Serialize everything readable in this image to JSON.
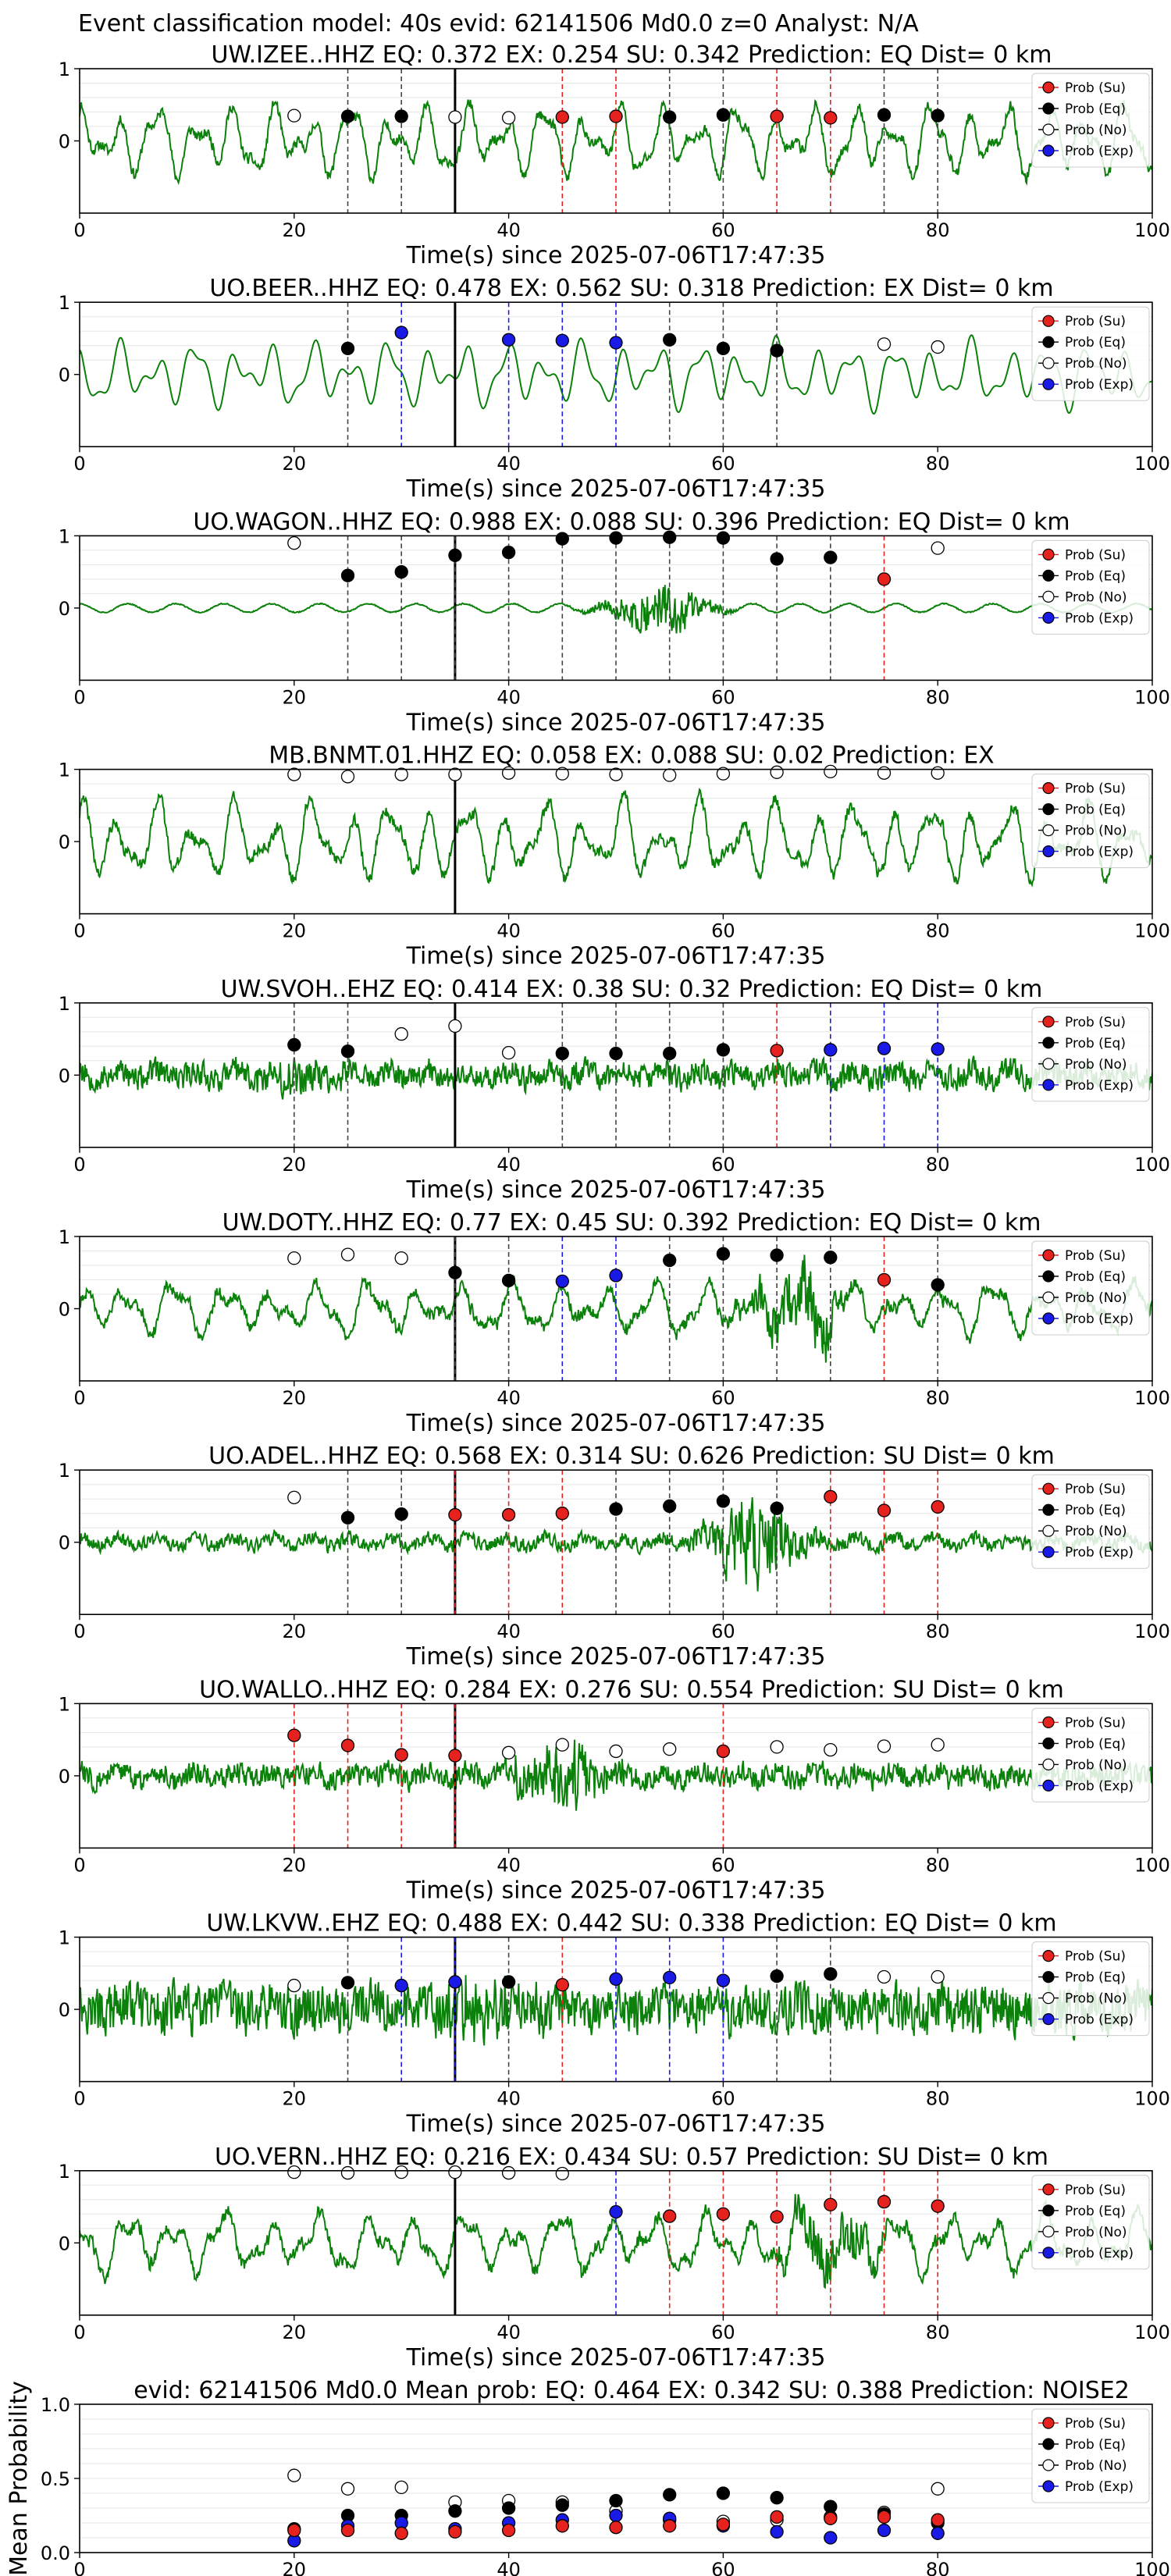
{
  "figure": {
    "suptitle": "Event classification model: 40s evid: 62141506 Md0.0 z=0 Analyst: N/A"
  },
  "legend_labels": [
    "Prob (Su)",
    "Prob (Eq)",
    "Prob (No)",
    "Prob (Exp)"
  ],
  "colors": {
    "su": "#e6221e",
    "eq": "#000000",
    "no": "#ffffff",
    "exp": "#1a1ae6",
    "trace": "#0b800b"
  },
  "chart_data": [
    {
      "type": "scatter",
      "title": "UW.IZEE..HHZ   EQ: 0.372  EX: 0.254  SU: 0.342   Prediction: EQ    Dist= 0 km",
      "xlabel": "Time(s) since 2025-07-06T17:47:35",
      "xlim": [
        0,
        100
      ],
      "ylim": [
        -1,
        1
      ],
      "xticks": [
        "0",
        "20",
        "40",
        "60",
        "80",
        "100"
      ],
      "yticks": [
        "0",
        "1"
      ],
      "waveform": {
        "seed": 11,
        "style": "low",
        "amp": 0.55,
        "burst": 0,
        "burst_center": 0
      },
      "markers": [
        {
          "x": 20,
          "y": 0.35,
          "cls": "no"
        },
        {
          "x": 25,
          "y": 0.34,
          "cls": "eq"
        },
        {
          "x": 30,
          "y": 0.34,
          "cls": "eq"
        },
        {
          "x": 35,
          "y": 0.33,
          "cls": "no"
        },
        {
          "x": 40,
          "y": 0.32,
          "cls": "no"
        },
        {
          "x": 45,
          "y": 0.33,
          "cls": "su"
        },
        {
          "x": 50,
          "y": 0.34,
          "cls": "su"
        },
        {
          "x": 55,
          "y": 0.33,
          "cls": "eq"
        },
        {
          "x": 60,
          "y": 0.36,
          "cls": "eq"
        },
        {
          "x": 65,
          "y": 0.34,
          "cls": "su"
        },
        {
          "x": 70,
          "y": 0.32,
          "cls": "su"
        },
        {
          "x": 75,
          "y": 0.36,
          "cls": "eq"
        },
        {
          "x": 80,
          "y": 0.35,
          "cls": "eq"
        }
      ]
    },
    {
      "type": "scatter",
      "title": "UO.BEER..HHZ   EQ: 0.478  EX: 0.562  SU: 0.318   Prediction: EX    Dist= 0 km",
      "xlabel": "Time(s) since 2025-07-06T17:47:35",
      "xlim": [
        0,
        100
      ],
      "ylim": [
        -1,
        1
      ],
      "xticks": [
        "0",
        "20",
        "40",
        "60",
        "80",
        "100"
      ],
      "yticks": [
        "0",
        "1"
      ],
      "waveform": {
        "seed": 23,
        "style": "smooth",
        "amp": 0.5,
        "burst": 0,
        "burst_center": 0
      },
      "markers": [
        {
          "x": 25,
          "y": 0.36,
          "cls": "eq"
        },
        {
          "x": 30,
          "y": 0.58,
          "cls": "exp"
        },
        {
          "x": 40,
          "y": 0.48,
          "cls": "exp"
        },
        {
          "x": 45,
          "y": 0.47,
          "cls": "exp"
        },
        {
          "x": 50,
          "y": 0.44,
          "cls": "exp"
        },
        {
          "x": 55,
          "y": 0.48,
          "cls": "eq"
        },
        {
          "x": 60,
          "y": 0.36,
          "cls": "eq"
        },
        {
          "x": 65,
          "y": 0.33,
          "cls": "eq"
        },
        {
          "x": 75,
          "y": 0.42,
          "cls": "no"
        },
        {
          "x": 80,
          "y": 0.38,
          "cls": "no"
        }
      ]
    },
    {
      "type": "scatter",
      "title": "UO.WAGON..HHZ   EQ: 0.988  EX: 0.088  SU: 0.396   Prediction: EQ    Dist= 0 km",
      "xlabel": "Time(s) since 2025-07-06T17:47:35",
      "xlim": [
        0,
        100
      ],
      "ylim": [
        -1,
        1
      ],
      "xticks": [
        "0",
        "20",
        "40",
        "60",
        "80",
        "100"
      ],
      "yticks": [
        "0",
        "1"
      ],
      "waveform": {
        "seed": 37,
        "style": "quiet",
        "amp": 0.06,
        "burst": 0.45,
        "burst_center": 54
      },
      "markers": [
        {
          "x": 20,
          "y": 0.9,
          "cls": "no"
        },
        {
          "x": 25,
          "y": 0.45,
          "cls": "eq"
        },
        {
          "x": 30,
          "y": 0.5,
          "cls": "eq"
        },
        {
          "x": 35,
          "y": 0.73,
          "cls": "eq"
        },
        {
          "x": 40,
          "y": 0.77,
          "cls": "eq"
        },
        {
          "x": 45,
          "y": 0.96,
          "cls": "eq"
        },
        {
          "x": 50,
          "y": 0.97,
          "cls": "eq"
        },
        {
          "x": 55,
          "y": 0.98,
          "cls": "eq"
        },
        {
          "x": 60,
          "y": 0.97,
          "cls": "eq"
        },
        {
          "x": 65,
          "y": 0.68,
          "cls": "eq"
        },
        {
          "x": 70,
          "y": 0.7,
          "cls": "eq"
        },
        {
          "x": 75,
          "y": 0.4,
          "cls": "su"
        },
        {
          "x": 80,
          "y": 0.83,
          "cls": "no"
        }
      ]
    },
    {
      "type": "scatter",
      "title": "MB.BNMT.01.HHZ   EQ: 0.058  EX: 0.088  SU: 0.02   Prediction: EX",
      "xlabel": "Time(s) since 2025-07-06T17:47:35",
      "xlim": [
        0,
        100
      ],
      "ylim": [
        -1,
        1
      ],
      "xticks": [
        "0",
        "20",
        "40",
        "60",
        "80",
        "100"
      ],
      "yticks": [
        "0",
        "1"
      ],
      "waveform": {
        "seed": 41,
        "style": "low",
        "amp": 0.6,
        "burst": 0,
        "burst_center": 0
      },
      "markers": [
        {
          "x": 20,
          "y": 0.93,
          "cls": "no"
        },
        {
          "x": 25,
          "y": 0.9,
          "cls": "no"
        },
        {
          "x": 30,
          "y": 0.93,
          "cls": "no"
        },
        {
          "x": 35,
          "y": 0.93,
          "cls": "no"
        },
        {
          "x": 40,
          "y": 0.95,
          "cls": "no"
        },
        {
          "x": 45,
          "y": 0.94,
          "cls": "no"
        },
        {
          "x": 50,
          "y": 0.93,
          "cls": "no"
        },
        {
          "x": 55,
          "y": 0.92,
          "cls": "no"
        },
        {
          "x": 60,
          "y": 0.94,
          "cls": "no"
        },
        {
          "x": 65,
          "y": 0.96,
          "cls": "no"
        },
        {
          "x": 70,
          "y": 0.97,
          "cls": "no"
        },
        {
          "x": 75,
          "y": 0.95,
          "cls": "no"
        },
        {
          "x": 80,
          "y": 0.95,
          "cls": "no"
        }
      ]
    },
    {
      "type": "scatter",
      "title": "UW.SVOH..EHZ   EQ: 0.414  EX: 0.38  SU: 0.32   Prediction: EQ    Dist= 0 km",
      "xlabel": "Time(s) since 2025-07-06T17:47:35",
      "xlim": [
        0,
        100
      ],
      "ylim": [
        -1,
        1
      ],
      "xticks": [
        "0",
        "20",
        "40",
        "60",
        "80",
        "100"
      ],
      "yticks": [
        "0",
        "1"
      ],
      "waveform": {
        "seed": 53,
        "style": "noise",
        "amp": 0.22,
        "burst": 0.25,
        "burst_center": 20
      },
      "markers": [
        {
          "x": 20,
          "y": 0.42,
          "cls": "eq"
        },
        {
          "x": 25,
          "y": 0.33,
          "cls": "eq"
        },
        {
          "x": 30,
          "y": 0.57,
          "cls": "no"
        },
        {
          "x": 35,
          "y": 0.68,
          "cls": "no"
        },
        {
          "x": 40,
          "y": 0.31,
          "cls": "no"
        },
        {
          "x": 45,
          "y": 0.3,
          "cls": "eq"
        },
        {
          "x": 50,
          "y": 0.3,
          "cls": "eq"
        },
        {
          "x": 55,
          "y": 0.3,
          "cls": "eq"
        },
        {
          "x": 60,
          "y": 0.35,
          "cls": "eq"
        },
        {
          "x": 65,
          "y": 0.34,
          "cls": "su"
        },
        {
          "x": 70,
          "y": 0.35,
          "cls": "exp"
        },
        {
          "x": 75,
          "y": 0.37,
          "cls": "exp"
        },
        {
          "x": 80,
          "y": 0.36,
          "cls": "exp"
        }
      ]
    },
    {
      "type": "scatter",
      "title": "UW.DOTY..HHZ   EQ: 0.77  EX: 0.45  SU: 0.392   Prediction: EQ    Dist= 0 km",
      "xlabel": "Time(s) since 2025-07-06T17:47:35",
      "xlim": [
        0,
        100
      ],
      "ylim": [
        -1,
        1
      ],
      "xticks": [
        "0",
        "20",
        "40",
        "60",
        "80",
        "100"
      ],
      "yticks": [
        "0",
        "1"
      ],
      "waveform": {
        "seed": 61,
        "style": "mixed",
        "amp": 0.4,
        "burst": 0.55,
        "burst_center": 67
      },
      "markers": [
        {
          "x": 20,
          "y": 0.7,
          "cls": "no"
        },
        {
          "x": 25,
          "y": 0.75,
          "cls": "no"
        },
        {
          "x": 30,
          "y": 0.7,
          "cls": "no"
        },
        {
          "x": 35,
          "y": 0.5,
          "cls": "eq"
        },
        {
          "x": 40,
          "y": 0.39,
          "cls": "eq"
        },
        {
          "x": 45,
          "y": 0.38,
          "cls": "exp"
        },
        {
          "x": 50,
          "y": 0.46,
          "cls": "exp"
        },
        {
          "x": 55,
          "y": 0.67,
          "cls": "eq"
        },
        {
          "x": 60,
          "y": 0.76,
          "cls": "eq"
        },
        {
          "x": 65,
          "y": 0.74,
          "cls": "eq"
        },
        {
          "x": 70,
          "y": 0.71,
          "cls": "eq"
        },
        {
          "x": 75,
          "y": 0.4,
          "cls": "su"
        },
        {
          "x": 80,
          "y": 0.33,
          "cls": "eq"
        }
      ]
    },
    {
      "type": "scatter",
      "title": "UO.ADEL..HHZ   EQ: 0.568  EX: 0.314  SU: 0.626   Prediction: SU    Dist= 0 km",
      "xlabel": "Time(s) since 2025-07-06T17:47:35",
      "xlim": [
        0,
        100
      ],
      "ylim": [
        -1,
        1
      ],
      "xticks": [
        "0",
        "20",
        "40",
        "60",
        "80",
        "100"
      ],
      "yticks": [
        "0",
        "1"
      ],
      "waveform": {
        "seed": 71,
        "style": "noise",
        "amp": 0.12,
        "burst": 0.7,
        "burst_center": 63
      },
      "markers": [
        {
          "x": 20,
          "y": 0.62,
          "cls": "no"
        },
        {
          "x": 25,
          "y": 0.34,
          "cls": "eq"
        },
        {
          "x": 30,
          "y": 0.39,
          "cls": "eq"
        },
        {
          "x": 35,
          "y": 0.38,
          "cls": "su"
        },
        {
          "x": 40,
          "y": 0.38,
          "cls": "su"
        },
        {
          "x": 45,
          "y": 0.4,
          "cls": "su"
        },
        {
          "x": 50,
          "y": 0.46,
          "cls": "eq"
        },
        {
          "x": 55,
          "y": 0.5,
          "cls": "eq"
        },
        {
          "x": 60,
          "y": 0.57,
          "cls": "eq"
        },
        {
          "x": 65,
          "y": 0.47,
          "cls": "eq"
        },
        {
          "x": 70,
          "y": 0.63,
          "cls": "su"
        },
        {
          "x": 75,
          "y": 0.44,
          "cls": "su"
        },
        {
          "x": 80,
          "y": 0.49,
          "cls": "su"
        }
      ]
    },
    {
      "type": "scatter",
      "title": "UO.WALLO..HHZ   EQ: 0.284  EX: 0.276  SU: 0.554   Prediction: SU    Dist= 0 km",
      "xlabel": "Time(s) since 2025-07-06T17:47:35",
      "xlim": [
        0,
        100
      ],
      "ylim": [
        -1,
        1
      ],
      "xticks": [
        "0",
        "20",
        "40",
        "60",
        "80",
        "100"
      ],
      "yticks": [
        "0",
        "1"
      ],
      "waveform": {
        "seed": 83,
        "style": "noise",
        "amp": 0.2,
        "burst": 0.55,
        "burst_center": 45
      },
      "markers": [
        {
          "x": 20,
          "y": 0.56,
          "cls": "su"
        },
        {
          "x": 25,
          "y": 0.42,
          "cls": "su"
        },
        {
          "x": 30,
          "y": 0.29,
          "cls": "su"
        },
        {
          "x": 35,
          "y": 0.28,
          "cls": "su"
        },
        {
          "x": 40,
          "y": 0.32,
          "cls": "no"
        },
        {
          "x": 45,
          "y": 0.43,
          "cls": "no"
        },
        {
          "x": 50,
          "y": 0.34,
          "cls": "no"
        },
        {
          "x": 55,
          "y": 0.37,
          "cls": "no"
        },
        {
          "x": 60,
          "y": 0.34,
          "cls": "su"
        },
        {
          "x": 65,
          "y": 0.4,
          "cls": "no"
        },
        {
          "x": 70,
          "y": 0.36,
          "cls": "no"
        },
        {
          "x": 75,
          "y": 0.41,
          "cls": "no"
        },
        {
          "x": 80,
          "y": 0.43,
          "cls": "no"
        }
      ]
    },
    {
      "type": "scatter",
      "title": "UW.LKVW..EHZ   EQ: 0.488  EX: 0.442  SU: 0.338   Prediction: EQ    Dist= 0 km",
      "xlabel": "Time(s) since 2025-07-06T17:47:35",
      "xlim": [
        0,
        100
      ],
      "ylim": [
        -1,
        1
      ],
      "xticks": [
        "0",
        "20",
        "40",
        "60",
        "80",
        "100"
      ],
      "yticks": [
        "0",
        "1"
      ],
      "waveform": {
        "seed": 97,
        "style": "noise",
        "amp": 0.42,
        "burst": 0.3,
        "burst_center": 38
      },
      "markers": [
        {
          "x": 20,
          "y": 0.33,
          "cls": "no"
        },
        {
          "x": 25,
          "y": 0.37,
          "cls": "eq"
        },
        {
          "x": 30,
          "y": 0.33,
          "cls": "exp"
        },
        {
          "x": 35,
          "y": 0.38,
          "cls": "exp"
        },
        {
          "x": 40,
          "y": 0.38,
          "cls": "eq"
        },
        {
          "x": 45,
          "y": 0.34,
          "cls": "su"
        },
        {
          "x": 50,
          "y": 0.42,
          "cls": "exp"
        },
        {
          "x": 55,
          "y": 0.44,
          "cls": "exp"
        },
        {
          "x": 60,
          "y": 0.4,
          "cls": "exp"
        },
        {
          "x": 65,
          "y": 0.46,
          "cls": "eq"
        },
        {
          "x": 70,
          "y": 0.49,
          "cls": "eq"
        },
        {
          "x": 75,
          "y": 0.45,
          "cls": "no"
        },
        {
          "x": 80,
          "y": 0.45,
          "cls": "no"
        }
      ]
    },
    {
      "type": "scatter",
      "title": "UO.VERN..HHZ   EQ: 0.216  EX: 0.434  SU: 0.57   Prediction: SU    Dist= 0 km",
      "xlabel": "Time(s) since 2025-07-06T17:47:35",
      "xlim": [
        0,
        100
      ],
      "ylim": [
        -1,
        1
      ],
      "xticks": [
        "0",
        "20",
        "40",
        "60",
        "80",
        "100"
      ],
      "yticks": [
        "0",
        "1"
      ],
      "waveform": {
        "seed": 103,
        "style": "mixed",
        "amp": 0.45,
        "burst": 0.5,
        "burst_center": 70
      },
      "markers": [
        {
          "x": 20,
          "y": 0.98,
          "cls": "no"
        },
        {
          "x": 25,
          "y": 0.97,
          "cls": "no"
        },
        {
          "x": 30,
          "y": 0.98,
          "cls": "no"
        },
        {
          "x": 35,
          "y": 0.98,
          "cls": "no"
        },
        {
          "x": 40,
          "y": 0.97,
          "cls": "no"
        },
        {
          "x": 45,
          "y": 0.96,
          "cls": "no"
        },
        {
          "x": 50,
          "y": 0.43,
          "cls": "exp"
        },
        {
          "x": 55,
          "y": 0.37,
          "cls": "su"
        },
        {
          "x": 60,
          "y": 0.4,
          "cls": "su"
        },
        {
          "x": 65,
          "y": 0.36,
          "cls": "su"
        },
        {
          "x": 70,
          "y": 0.53,
          "cls": "su"
        },
        {
          "x": 75,
          "y": 0.57,
          "cls": "su"
        },
        {
          "x": 80,
          "y": 0.51,
          "cls": "su"
        }
      ]
    },
    {
      "type": "scatter",
      "title": "evid: 62141506  Md0.0   Mean prob:   EQ: 0.464  EX: 0.342  SU: 0.388   Prediction: NOISE2",
      "ylabel": "Mean Probability",
      "xlim": [
        0,
        100
      ],
      "ylim": [
        0,
        1
      ],
      "xticks": [
        "0",
        "20",
        "40",
        "60",
        "80",
        "100"
      ],
      "yticks": [
        "0.0",
        "0.5",
        "1.0"
      ],
      "series": [
        {
          "cls": "no",
          "x": [
            20,
            25,
            30,
            35,
            40,
            45,
            50,
            55,
            60,
            65,
            70,
            75,
            80
          ],
          "y": [
            0.52,
            0.43,
            0.44,
            0.34,
            0.35,
            0.34,
            0.28,
            0.22,
            0.21,
            0.22,
            0.24,
            0.27,
            0.43
          ]
        },
        {
          "cls": "eq",
          "x": [
            20,
            25,
            30,
            35,
            40,
            45,
            50,
            55,
            60,
            65,
            70,
            75,
            80
          ],
          "y": [
            0.16,
            0.25,
            0.25,
            0.28,
            0.3,
            0.32,
            0.35,
            0.39,
            0.4,
            0.37,
            0.31,
            0.26,
            0.2
          ]
        },
        {
          "cls": "exp",
          "x": [
            20,
            25,
            30,
            35,
            40,
            45,
            50,
            55,
            60,
            65,
            70,
            75,
            80
          ],
          "y": [
            0.08,
            0.18,
            0.2,
            0.16,
            0.2,
            0.22,
            0.25,
            0.23,
            0.18,
            0.14,
            0.1,
            0.15,
            0.13
          ]
        },
        {
          "cls": "su",
          "x": [
            20,
            25,
            30,
            35,
            40,
            45,
            50,
            55,
            60,
            65,
            70,
            75,
            80
          ],
          "y": [
            0.15,
            0.15,
            0.13,
            0.14,
            0.15,
            0.18,
            0.17,
            0.18,
            0.19,
            0.24,
            0.23,
            0.24,
            0.22
          ]
        }
      ]
    }
  ]
}
